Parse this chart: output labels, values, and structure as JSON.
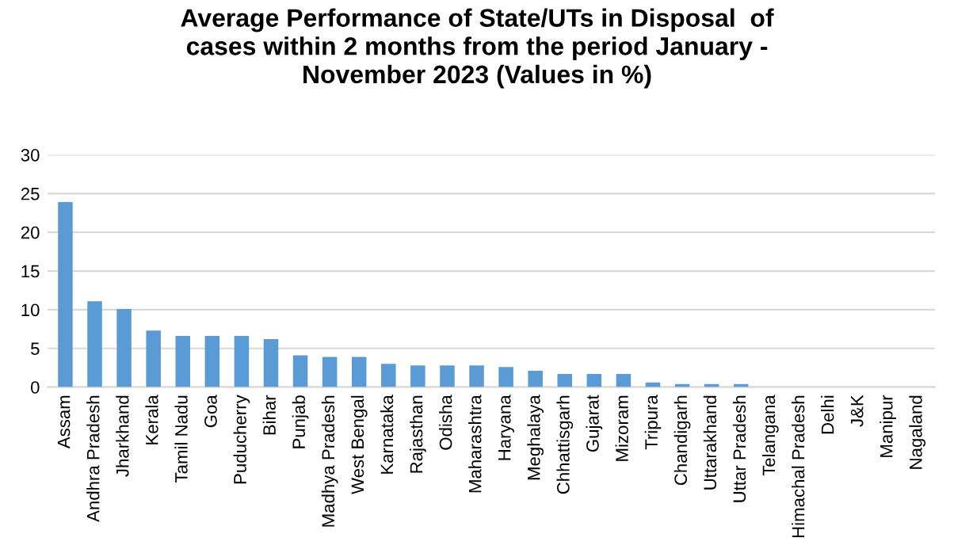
{
  "chart_data": {
    "type": "bar",
    "title": "Average Performance of State/UTs in Disposal  of\ncases within 2 months from the period January -\nNovember 2023 (Values in %)",
    "categories": [
      "Assam",
      "Andhra Pradesh",
      "Jharkhand",
      "Kerala",
      "Tamil Nadu",
      "Goa",
      "Puducherry",
      "Bihar",
      "Punjab",
      "Madhya Pradesh",
      "West Bengal",
      "Karnataka",
      "Rajasthan",
      "Odisha",
      "Maharashtra",
      "Haryana",
      "Meghalaya",
      "Chhattisgarh",
      "Gujarat",
      "Mizoram",
      "Tripura",
      "Chandigarh",
      "Uttarakhand",
      "Uttar Pradesh",
      "Telangana",
      "Himachal Pradesh",
      "Delhi",
      "J&K",
      "Manipur",
      "Nagaland"
    ],
    "values": [
      23.9,
      11.1,
      10.1,
      7.3,
      6.6,
      6.6,
      6.6,
      6.2,
      4.1,
      3.9,
      3.9,
      3.0,
      2.8,
      2.8,
      2.8,
      2.6,
      2.1,
      1.7,
      1.7,
      1.7,
      0.6,
      0.4,
      0.4,
      0.4,
      0,
      0,
      0,
      0,
      0,
      0
    ],
    "color": "#5b9bd5",
    "ylim": [
      0,
      30
    ],
    "yticks": [
      0,
      5,
      10,
      15,
      20,
      25,
      30
    ],
    "grid": "y"
  }
}
